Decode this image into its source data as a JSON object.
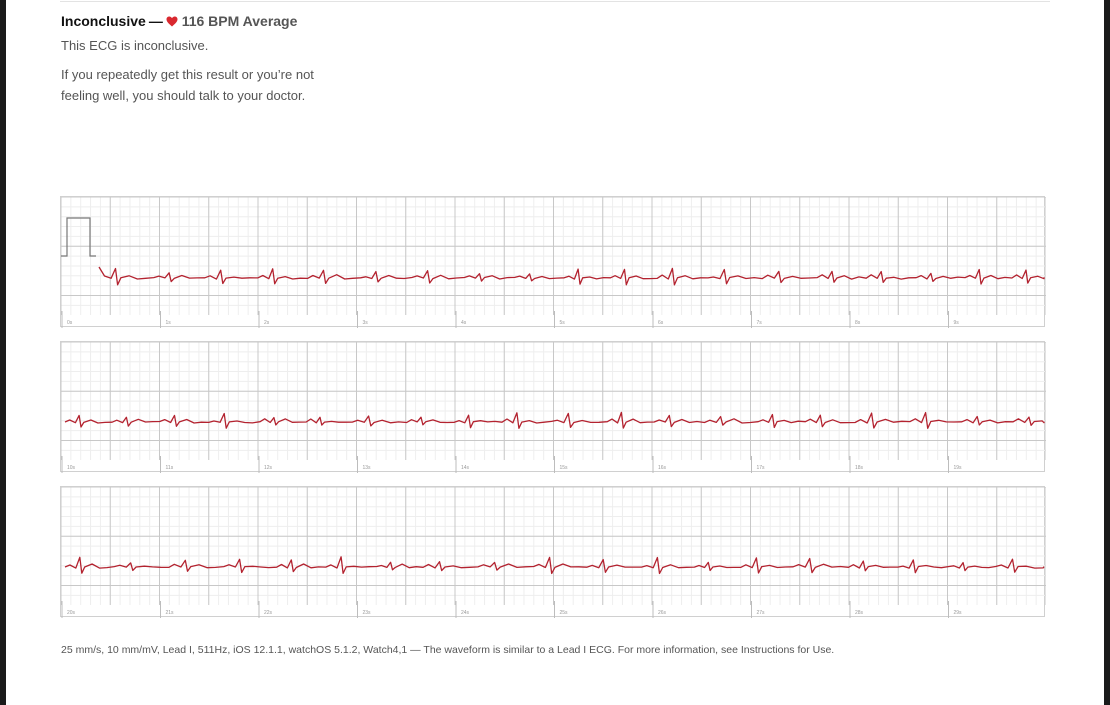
{
  "header": {
    "result": "Inconclusive",
    "dash": "—",
    "bpm_text": "116 BPM Average",
    "summary": "This ECG is inconclusive.",
    "advice": "If you repeatedly get this result or you’re not feeling well, you should talk to your doctor."
  },
  "strips": [
    {
      "id": "strip-1",
      "start_s": 0,
      "end_s": 10,
      "tick_labels": [
        "0s",
        "1s",
        "2s",
        "3s",
        "4s",
        "5s",
        "6s",
        "7s",
        "8s",
        "9s"
      ],
      "calibration_pulse": true
    },
    {
      "id": "strip-2",
      "start_s": 10,
      "end_s": 20,
      "tick_labels": [
        "10s",
        "11s",
        "12s",
        "13s",
        "14s",
        "15s",
        "16s",
        "17s",
        "18s",
        "19s"
      ],
      "calibration_pulse": false
    },
    {
      "id": "strip-3",
      "start_s": 20,
      "end_s": 30,
      "tick_labels": [
        "20s",
        "21s",
        "22s",
        "23s",
        "24s",
        "25s",
        "26s",
        "27s",
        "28s",
        "29s"
      ],
      "calibration_pulse": false
    }
  ],
  "waveform": {
    "average_bpm": 116,
    "seconds_per_strip": 10,
    "color": "#b3222f"
  },
  "colors": {
    "heart": "#d9282f",
    "grid_major": "#c8c8c8",
    "grid_minor": "#eeeeee"
  },
  "footnote": "25 mm/s, 10 mm/mV, Lead I, 511Hz, iOS 12.1.1, watchOS 5.1.2, Watch4,1 — The waveform is similar to a Lead I ECG. For more information, see Instructions for Use."
}
